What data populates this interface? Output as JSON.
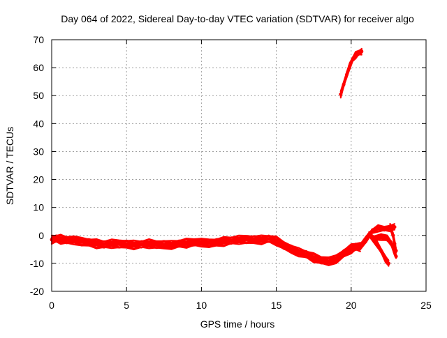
{
  "chart_data": {
    "type": "scatter",
    "title": "Day 064 of 2022, Sidereal Day-to-day VTEC variation (SDTVAR) for receiver algo",
    "xlabel": "GPS time / hours",
    "ylabel": "SDTVAR / TECUs",
    "xlim": [
      0,
      25
    ],
    "ylim": [
      -20,
      70
    ],
    "xticks": [
      0,
      5,
      10,
      15,
      20,
      25
    ],
    "yticks": [
      -20,
      -10,
      0,
      10,
      20,
      30,
      40,
      50,
      60,
      70
    ],
    "xtick_labels": [
      "0",
      "5",
      "10",
      "15",
      "20",
      "25"
    ],
    "ytick_labels": [
      "-20",
      "-10",
      "0",
      "10",
      "20",
      "30",
      "40",
      "50",
      "60",
      "70"
    ],
    "grid": true,
    "series_color": "#ff0000",
    "series": [
      {
        "name": "main",
        "band": 3,
        "points": [
          [
            0,
            -1.5
          ],
          [
            0.3,
            -1.2
          ],
          [
            0.6,
            -1.4
          ],
          [
            1.0,
            -1.6
          ],
          [
            1.5,
            -1.8
          ],
          [
            2.0,
            -2.2
          ],
          [
            2.5,
            -2.6
          ],
          [
            3.0,
            -3.0
          ],
          [
            3.5,
            -3.2
          ],
          [
            4.0,
            -3.0
          ],
          [
            4.5,
            -3.0
          ],
          [
            5.0,
            -3.2
          ],
          [
            5.5,
            -3.4
          ],
          [
            6.0,
            -3.2
          ],
          [
            6.5,
            -3.0
          ],
          [
            7.0,
            -3.2
          ],
          [
            7.5,
            -3.4
          ],
          [
            8.0,
            -3.4
          ],
          [
            8.5,
            -3.0
          ],
          [
            9.0,
            -2.8
          ],
          [
            9.5,
            -2.4
          ],
          [
            10.0,
            -2.6
          ],
          [
            10.5,
            -2.8
          ],
          [
            11.0,
            -2.6
          ],
          [
            11.5,
            -2.2
          ],
          [
            12.0,
            -1.8
          ],
          [
            12.5,
            -1.6
          ],
          [
            13.0,
            -1.4
          ],
          [
            13.5,
            -1.6
          ],
          [
            14.0,
            -1.6
          ],
          [
            14.5,
            -1.2
          ],
          [
            15.0,
            -2.0
          ],
          [
            15.5,
            -3.5
          ],
          [
            16.0,
            -5.0
          ],
          [
            16.5,
            -6.0
          ],
          [
            17.0,
            -6.8
          ],
          [
            17.5,
            -8.0
          ],
          [
            18.0,
            -8.8
          ],
          [
            18.5,
            -9.3
          ],
          [
            19.0,
            -8.5
          ],
          [
            19.5,
            -6.5
          ],
          [
            20.0,
            -4.8
          ],
          [
            20.3,
            -4.0
          ],
          [
            20.6,
            -4.2
          ]
        ]
      },
      {
        "name": "spike",
        "band": 2,
        "points": [
          [
            19.3,
            50.5
          ],
          [
            19.5,
            54.0
          ],
          [
            19.7,
            57.5
          ],
          [
            19.9,
            60.5
          ],
          [
            20.1,
            63.0
          ],
          [
            20.3,
            64.5
          ],
          [
            20.5,
            65.3
          ],
          [
            20.7,
            65.8
          ]
        ]
      },
      {
        "name": "tail-a",
        "band": 2,
        "points": [
          [
            20.6,
            -4.0
          ],
          [
            21.0,
            -1.5
          ],
          [
            21.4,
            1.5
          ],
          [
            21.8,
            2.5
          ],
          [
            22.2,
            2.4
          ],
          [
            22.6,
            2.6
          ],
          [
            22.9,
            3.0
          ]
        ]
      },
      {
        "name": "tail-b",
        "band": 2,
        "points": [
          [
            21.2,
            0.5
          ],
          [
            21.6,
            -2.0
          ],
          [
            22.0,
            -5.5
          ],
          [
            22.3,
            -8.5
          ],
          [
            22.5,
            -10.0
          ]
        ]
      },
      {
        "name": "tail-c",
        "band": 2,
        "points": [
          [
            21.5,
            -1.0
          ],
          [
            22.0,
            -0.5
          ],
          [
            22.4,
            -1.0
          ],
          [
            22.7,
            -3.0
          ],
          [
            22.9,
            -6.0
          ],
          [
            23.0,
            -7.5
          ]
        ]
      },
      {
        "name": "tail-d",
        "band": 2,
        "points": [
          [
            22.6,
            3.2
          ],
          [
            22.8,
            0.0
          ],
          [
            22.9,
            -3.0
          ],
          [
            23.0,
            -5.5
          ]
        ]
      }
    ]
  }
}
